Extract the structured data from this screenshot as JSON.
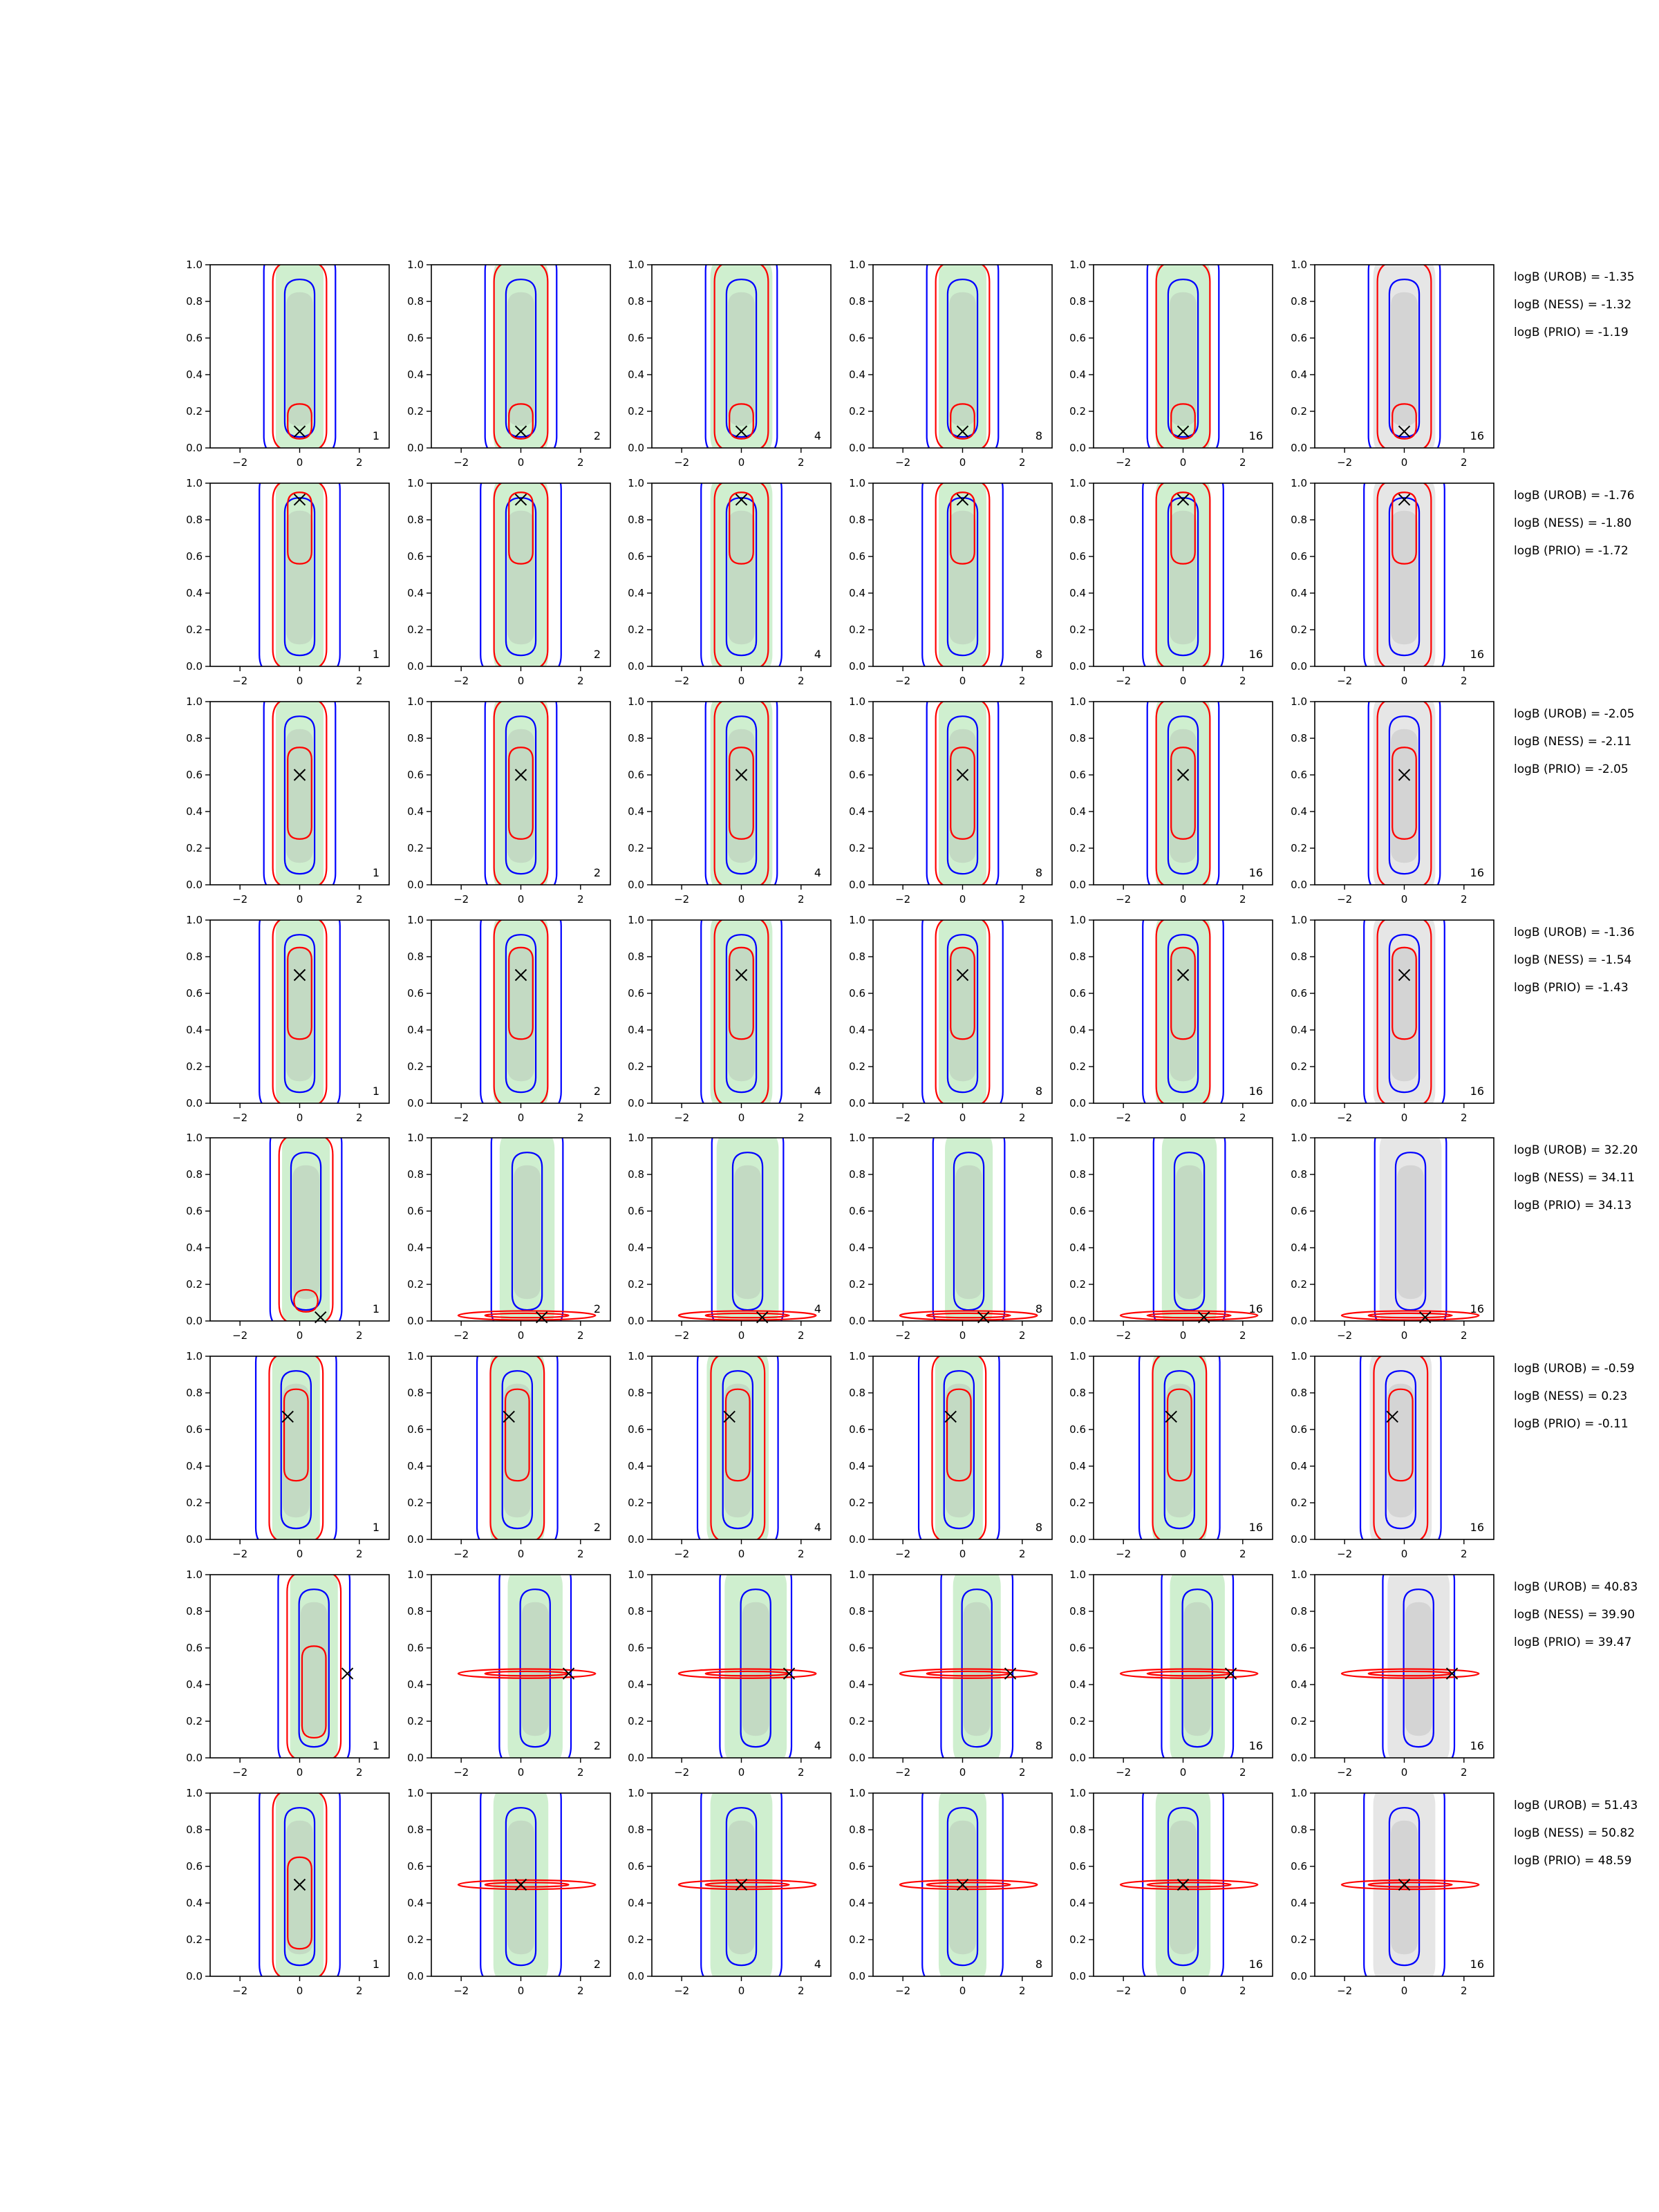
{
  "figure": {
    "colors": {
      "green_fill": "#9fe09f",
      "grey_fill": "#a6a6a6",
      "blue_contour": "#0000ff",
      "red_contour": "#ff0000",
      "marker": "#000000",
      "axes": "#000000"
    }
  },
  "chart_data": {
    "type": "contour",
    "layout": {
      "rows": 8,
      "cols": 6
    },
    "x_axis": {
      "range": [
        -3,
        3
      ],
      "ticks": [
        -2,
        0,
        2
      ]
    },
    "y_axis": {
      "range": [
        0,
        1
      ],
      "ticks": [
        0.0,
        0.2,
        0.4,
        0.6,
        0.8,
        1.0
      ]
    },
    "tick_labels": {
      "x": [
        "−2",
        "0",
        "2"
      ],
      "y": [
        "0.0",
        "0.2",
        "0.4",
        "0.6",
        "0.8",
        "1.0"
      ]
    },
    "column_labels": [
      "1",
      "2",
      "4",
      "8",
      "16",
      "16"
    ],
    "column_backgrounds": [
      "green",
      "green",
      "green",
      "green",
      "green",
      "grey"
    ],
    "rows": [
      {
        "truth": [
          0,
          0.09
        ],
        "logB": [
          "logB (UROB) = -1.35",
          "logB (NESS) = -1.32",
          "logB (PRIO) = -1.19"
        ]
      },
      {
        "truth": [
          0,
          0.91
        ],
        "logB": [
          "logB (UROB) = -1.76",
          "logB (NESS) = -1.80",
          "logB (PRIO) = -1.72"
        ]
      },
      {
        "truth": [
          0,
          0.6
        ],
        "logB": [
          "logB (UROB) = -2.05",
          "logB (NESS) = -2.11",
          "logB (PRIO) = -2.05"
        ]
      },
      {
        "truth": [
          0,
          0.7
        ],
        "logB": [
          "logB (UROB) = -1.36",
          "logB (NESS) = -1.54",
          "logB (PRIO) = -1.43"
        ]
      },
      {
        "truth": [
          0.7,
          0.02
        ],
        "logB": [
          "logB (UROB) = 32.20",
          "logB (NESS) = 34.11",
          "logB (PRIO) = 34.13"
        ]
      },
      {
        "truth": [
          -0.4,
          0.67
        ],
        "logB": [
          "logB (UROB) = -0.59",
          "logB (NESS) = 0.23",
          "logB (PRIO) = -0.11"
        ]
      },
      {
        "truth": [
          1.6,
          0.46
        ],
        "logB": [
          "logB (UROB) = 40.83",
          "logB (NESS) = 39.90",
          "logB (PRIO) = 39.47"
        ]
      },
      {
        "truth": [
          0,
          0.5
        ],
        "logB": [
          "logB (UROB) = 51.43",
          "logB (NESS) = 50.82",
          "logB (PRIO) = 48.59"
        ]
      }
    ]
  }
}
